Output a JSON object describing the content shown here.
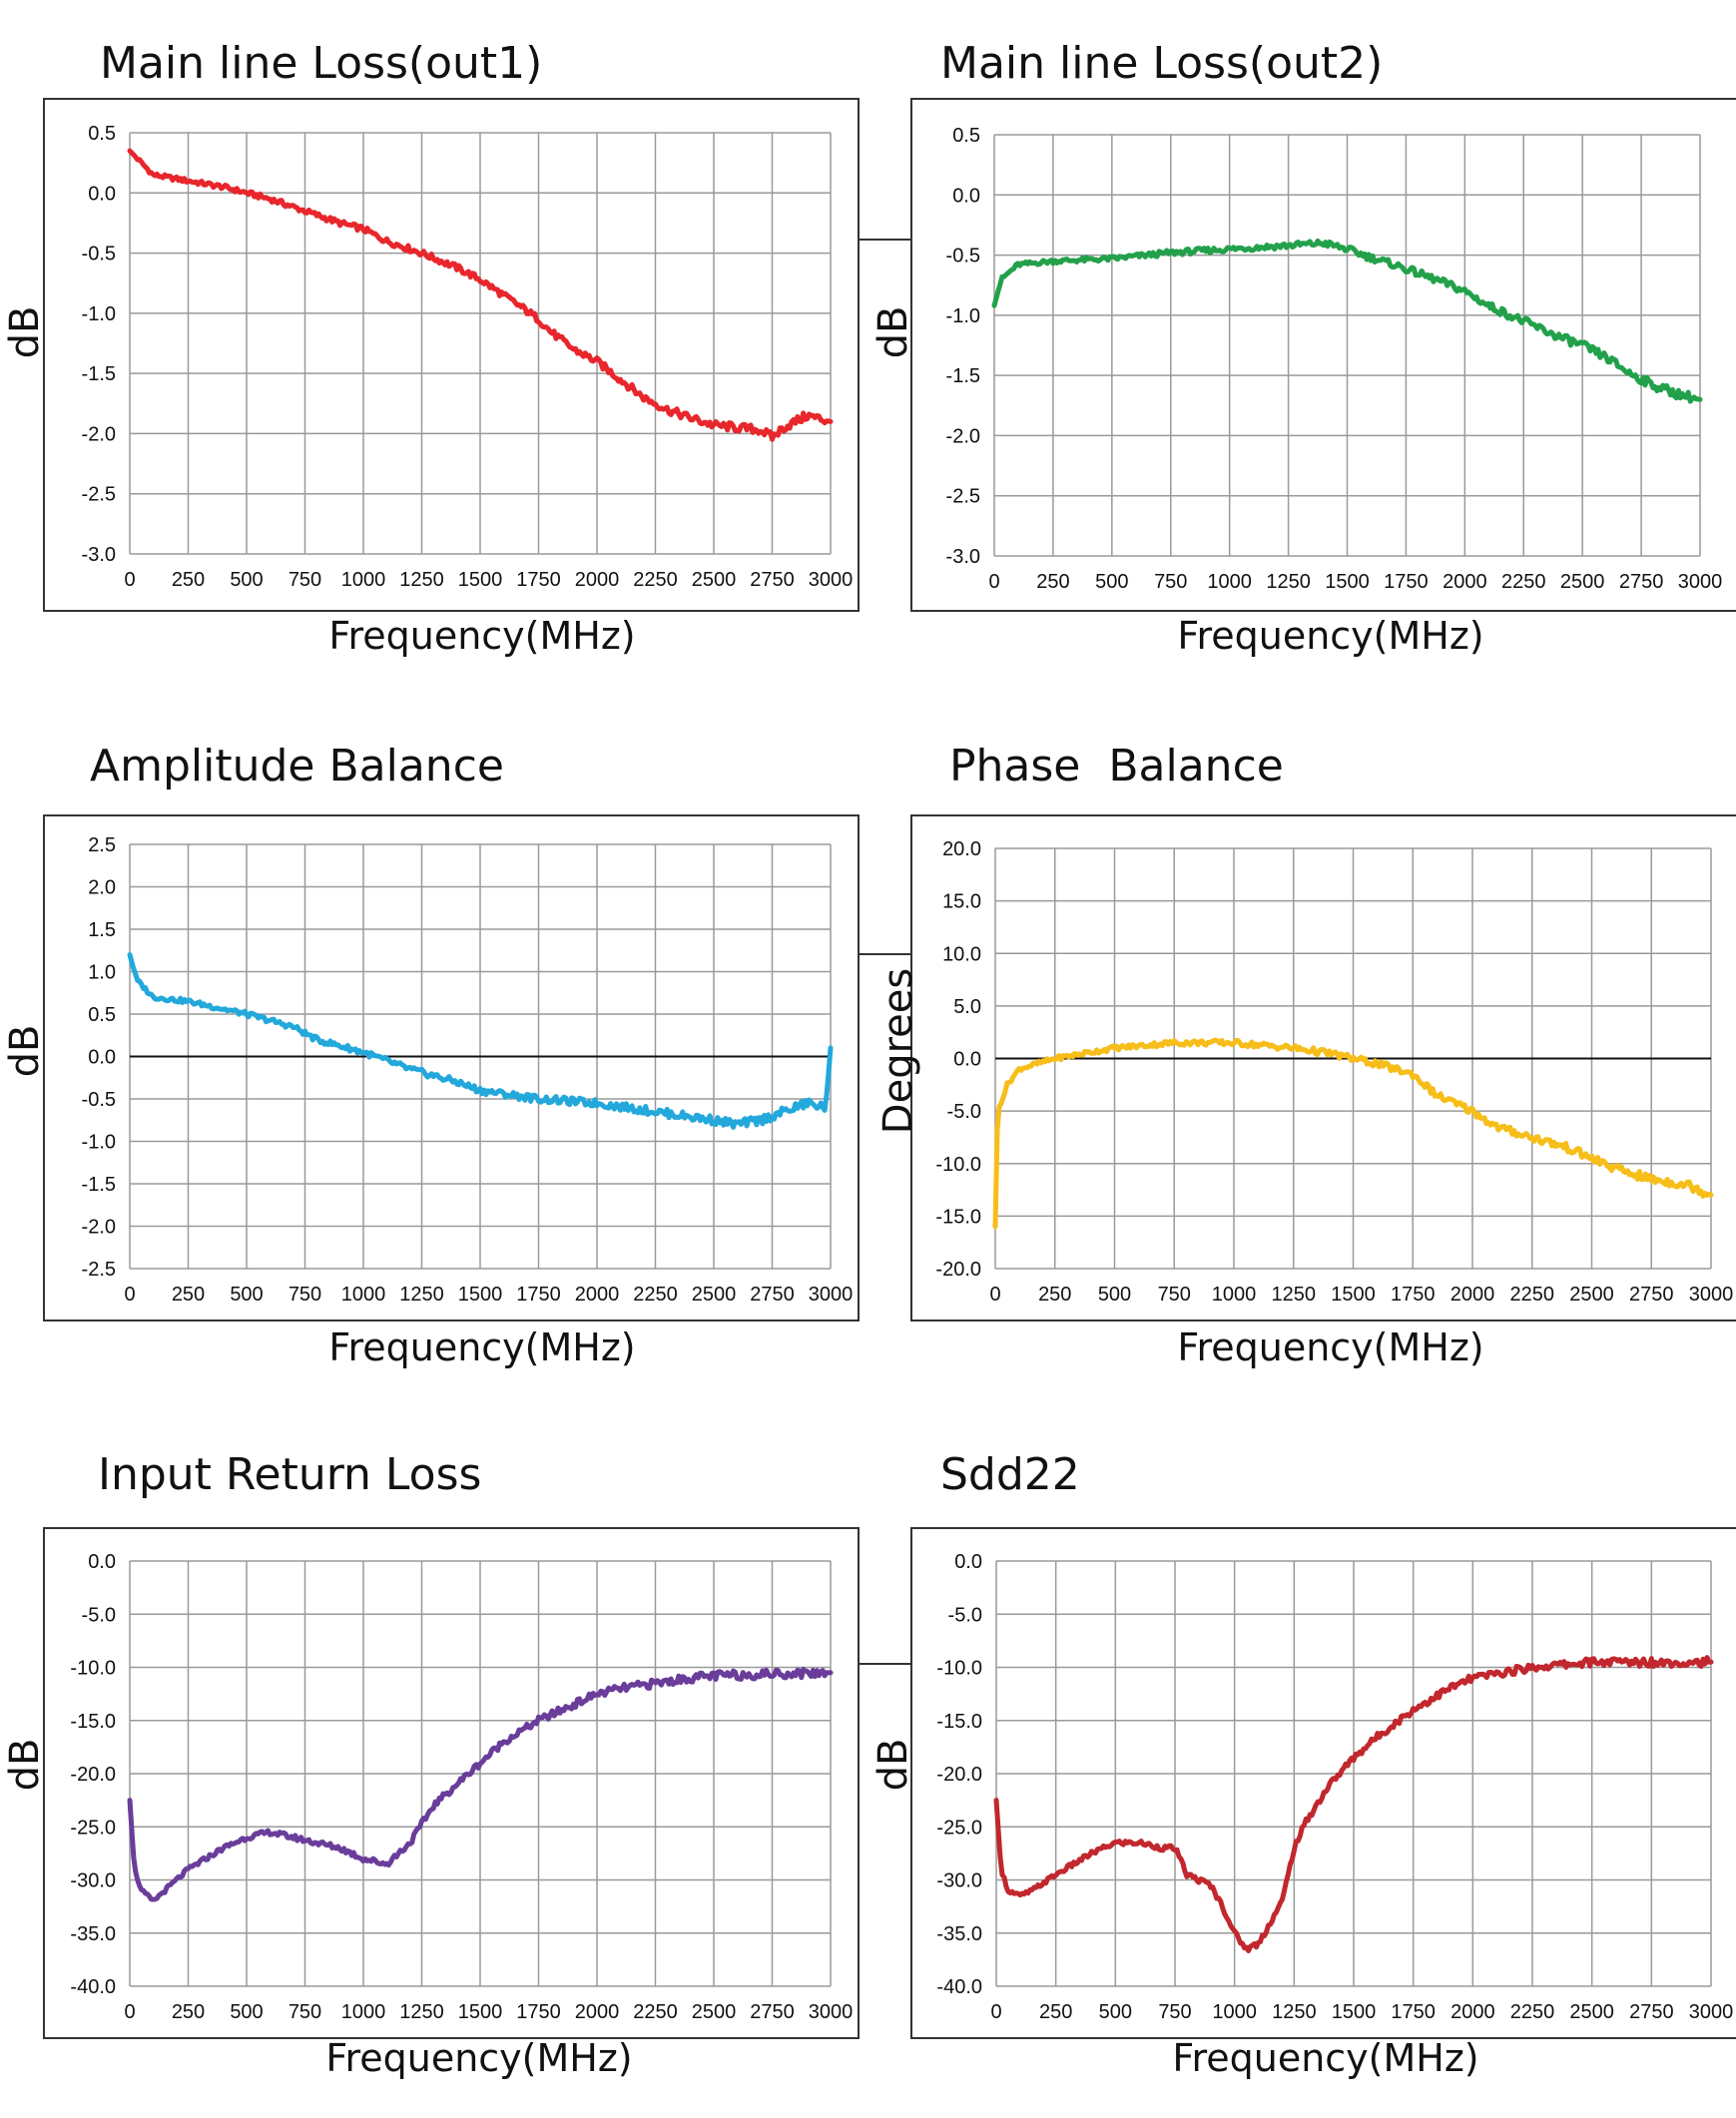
{
  "chart_data": [
    {
      "type": "line",
      "title": "Main line Loss(out1)",
      "xlabel": "Frequency(MHz)",
      "ylabel": "dB",
      "xlim": [
        0,
        3000
      ],
      "ylim": [
        -3.0,
        0.5
      ],
      "xticks": [
        "0",
        "250",
        "500",
        "750",
        "1000",
        "1250",
        "1500",
        "1750",
        "2000",
        "2250",
        "2500",
        "2750",
        "3000"
      ],
      "yticks": [
        "0.5",
        "0.0",
        "-0.5",
        "-1.0",
        "-1.5",
        "-2.0",
        "-2.5",
        "-3.0"
      ],
      "grid": true,
      "color": "#e8262b",
      "series": [
        {
          "x": [
            0,
            100,
            250,
            400,
            500,
            600,
            750,
            900,
            1000,
            1100,
            1250,
            1400,
            1500,
            1600,
            1700,
            1750,
            1800,
            1900,
            2000,
            2100,
            2200,
            2300,
            2400,
            2450,
            2500,
            2600,
            2700,
            2750,
            2800,
            2900,
            3000
          ],
          "y": [
            0.35,
            0.15,
            0.1,
            0.05,
            0.0,
            -0.05,
            -0.15,
            -0.25,
            -0.3,
            -0.4,
            -0.5,
            -0.62,
            -0.72,
            -0.85,
            -0.98,
            -1.05,
            -1.15,
            -1.3,
            -1.4,
            -1.55,
            -1.7,
            -1.8,
            -1.87,
            -1.9,
            -1.93,
            -1.95,
            -1.97,
            -2.03,
            -1.95,
            -1.85,
            -1.9
          ]
        }
      ]
    },
    {
      "type": "line",
      "title": "Main line Loss(out2)",
      "xlabel": "Frequency(MHz)",
      "ylabel": "dB",
      "xlim": [
        0,
        3000
      ],
      "ylim": [
        -3.0,
        0.5
      ],
      "xticks": [
        "0",
        "250",
        "500",
        "750",
        "1000",
        "1250",
        "1500",
        "1750",
        "2000",
        "2250",
        "2500",
        "2750",
        "3000"
      ],
      "yticks": [
        "0.5",
        "0.0",
        "-0.5",
        "-1.0",
        "-1.5",
        "-2.0",
        "-2.5",
        "-3.0"
      ],
      "grid": true,
      "color": "#22a14a",
      "series": [
        {
          "x": [
            0,
            30,
            100,
            250,
            500,
            750,
            1000,
            1250,
            1400,
            1500,
            1600,
            1700,
            1800,
            1900,
            2000,
            2100,
            2250,
            2400,
            2500,
            2600,
            2700,
            2800,
            2900,
            3000
          ],
          "y": [
            -0.92,
            -0.7,
            -0.58,
            -0.55,
            -0.53,
            -0.48,
            -0.45,
            -0.42,
            -0.4,
            -0.45,
            -0.52,
            -0.58,
            -0.65,
            -0.72,
            -0.8,
            -0.92,
            -1.05,
            -1.18,
            -1.25,
            -1.35,
            -1.48,
            -1.58,
            -1.65,
            -1.7
          ]
        }
      ]
    },
    {
      "type": "line",
      "title": "Amplitude Balance",
      "xlabel": "Frequency(MHz)",
      "ylabel": "dB",
      "xlim": [
        0,
        3000
      ],
      "ylim": [
        -2.5,
        2.5
      ],
      "xticks": [
        "0",
        "250",
        "500",
        "750",
        "1000",
        "1250",
        "1500",
        "1750",
        "2000",
        "2250",
        "2500",
        "2750",
        "3000"
      ],
      "yticks": [
        "2.5",
        "2.0",
        "1.5",
        "1.0",
        "0.5",
        "0.0",
        "-0.5",
        "-1.0",
        "-1.5",
        "-2.0",
        "-2.5"
      ],
      "grid": true,
      "zero_line": true,
      "color": "#23a8dc",
      "series": [
        {
          "x": [
            0,
            30,
            100,
            250,
            500,
            700,
            800,
            1000,
            1200,
            1400,
            1500,
            1750,
            2000,
            2250,
            2500,
            2600,
            2700,
            2800,
            2900,
            2980,
            3000
          ],
          "y": [
            1.2,
            0.9,
            0.7,
            0.65,
            0.5,
            0.35,
            0.2,
            0.05,
            -0.15,
            -0.3,
            -0.4,
            -0.5,
            -0.55,
            -0.65,
            -0.75,
            -0.8,
            -0.75,
            -0.65,
            -0.55,
            -0.6,
            0.1
          ]
        }
      ]
    },
    {
      "type": "line",
      "title": "Phase  Balance",
      "xlabel": "Frequency(MHz)",
      "ylabel": "Degrees",
      "xlim": [
        0,
        3000
      ],
      "ylim": [
        -20.0,
        20.0
      ],
      "xticks": [
        "0",
        "250",
        "500",
        "750",
        "1000",
        "1250",
        "1500",
        "1750",
        "2000",
        "2250",
        "2500",
        "2750",
        "3000"
      ],
      "yticks": [
        "20.0",
        "15.0",
        "10.0",
        "5.0",
        "0.0",
        "-5.0",
        "-10.0",
        "-15.0",
        "-20.0"
      ],
      "grid": true,
      "zero_line": true,
      "color": "#f7bd18",
      "series": [
        {
          "x": [
            0,
            10,
            50,
            100,
            250,
            500,
            750,
            1000,
            1250,
            1400,
            1500,
            1600,
            1750,
            1850,
            2000,
            2100,
            2250,
            2400,
            2500,
            2600,
            2750,
            2900,
            3000
          ],
          "y": [
            -16.0,
            -5.0,
            -2.5,
            -1.0,
            0.0,
            1.0,
            1.5,
            1.5,
            1.0,
            0.5,
            0.0,
            -0.5,
            -1.5,
            -3.5,
            -5.0,
            -6.5,
            -7.5,
            -8.5,
            -9.5,
            -10.5,
            -11.5,
            -12.0,
            -13.0
          ]
        }
      ]
    },
    {
      "type": "line",
      "title": "Input Return Loss",
      "xlabel": "Frequency(MHz)",
      "ylabel": "dB",
      "xlim": [
        0,
        3000
      ],
      "ylim": [
        -40.0,
        0.0
      ],
      "xticks": [
        "0",
        "250",
        "500",
        "750",
        "1000",
        "1250",
        "1500",
        "1750",
        "2000",
        "2250",
        "2500",
        "2750",
        "3000"
      ],
      "yticks": [
        "0.0",
        "-5.0",
        "-10.0",
        "-15.0",
        "-20.0",
        "-25.0",
        "-30.0",
        "-35.0",
        "-40.0"
      ],
      "grid": true,
      "color": "#6a3d9a",
      "series": [
        {
          "x": [
            0,
            20,
            50,
            100,
            150,
            250,
            400,
            500,
            600,
            700,
            800,
            900,
            1000,
            1100,
            1200,
            1300,
            1400,
            1500,
            1600,
            1750,
            1900,
            2000,
            2100,
            2250,
            2400,
            2500,
            2750,
            3000
          ],
          "y": [
            -22.5,
            -29.0,
            -31.0,
            -32.0,
            -31.0,
            -29.0,
            -27.0,
            -26.0,
            -25.5,
            -26.0,
            -26.5,
            -27.0,
            -28.0,
            -28.5,
            -26.5,
            -23.0,
            -21.0,
            -19.0,
            -17.0,
            -15.0,
            -13.5,
            -12.5,
            -12.0,
            -11.5,
            -11.0,
            -10.8,
            -10.6,
            -10.5
          ]
        }
      ]
    },
    {
      "type": "line",
      "title": "Sdd22",
      "xlabel": "Frequency(MHz)",
      "ylabel": "dB",
      "xlim": [
        0,
        3000
      ],
      "ylim": [
        -40.0,
        0.0
      ],
      "xticks": [
        "0",
        "250",
        "500",
        "750",
        "1000",
        "1250",
        "1500",
        "1750",
        "2000",
        "2250",
        "2500",
        "2750",
        "3000"
      ],
      "yticks": [
        "0.0",
        "-5.0",
        "-10.0",
        "-15.0",
        "-20.0",
        "-25.0",
        "-30.0",
        "-35.0",
        "-40.0"
      ],
      "grid": true,
      "color": "#c1272d",
      "series": [
        {
          "x": [
            0,
            20,
            50,
            100,
            150,
            250,
            400,
            500,
            600,
            700,
            750,
            800,
            900,
            950,
            1000,
            1050,
            1100,
            1150,
            1200,
            1250,
            1300,
            1400,
            1500,
            1600,
            1750,
            1900,
            2000,
            2250,
            2500,
            2750,
            3000
          ],
          "y": [
            -22.5,
            -29.0,
            -31.0,
            -31.5,
            -31.0,
            -29.5,
            -27.5,
            -26.5,
            -26.5,
            -27.0,
            -27.0,
            -29.5,
            -30.5,
            -32.5,
            -35.0,
            -36.5,
            -36.0,
            -34.0,
            -32.0,
            -27.0,
            -24.5,
            -21.0,
            -18.5,
            -16.5,
            -14.0,
            -12.0,
            -11.0,
            -10.0,
            -9.5,
            -9.5,
            -9.5
          ]
        }
      ]
    }
  ]
}
